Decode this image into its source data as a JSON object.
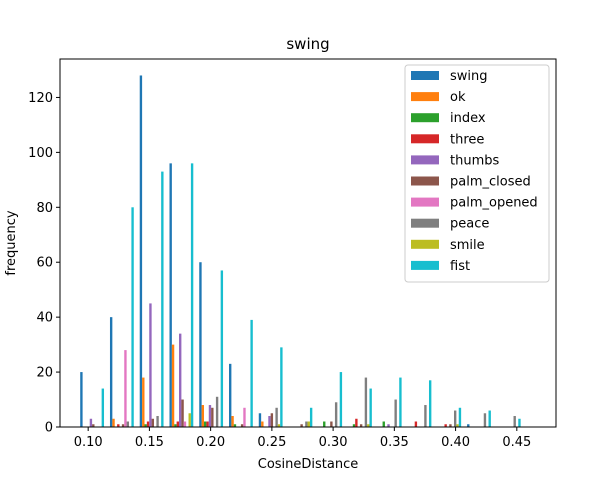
{
  "chart_data": {
    "type": "bar",
    "title": "swing",
    "xlabel": "CosineDistance",
    "ylabel": "frequency",
    "xlim": [
      0.077,
      0.482
    ],
    "ylim": [
      0,
      134
    ],
    "x_ticks": [
      "0.10",
      "0.15",
      "0.20",
      "0.25",
      "0.30",
      "0.35",
      "0.40",
      "0.45"
    ],
    "y_ticks": [
      "0",
      "20",
      "40",
      "60",
      "80",
      "100",
      "120"
    ],
    "legend_position": "top-right",
    "bin_start": 0.0935,
    "bin_width": 0.0243,
    "bins": 15,
    "series": [
      {
        "name": "swing",
        "color": "#1f77b4",
        "values": [
          20,
          40,
          128,
          96,
          60,
          23,
          5,
          0,
          0,
          0,
          0,
          0,
          0,
          1,
          0
        ]
      },
      {
        "name": "ok",
        "color": "#ff7f0e",
        "values": [
          0,
          3,
          18,
          30,
          8,
          4,
          2,
          0,
          0,
          0,
          0,
          0,
          0,
          0,
          0
        ]
      },
      {
        "name": "index",
        "color": "#2ca02c",
        "values": [
          0,
          0,
          1,
          1,
          2,
          1,
          0,
          0,
          2,
          1,
          2,
          0,
          0,
          0,
          0
        ]
      },
      {
        "name": "three",
        "color": "#d62728",
        "values": [
          0,
          1,
          2,
          2,
          2,
          0,
          0,
          0,
          0,
          3,
          0,
          2,
          1,
          0,
          0
        ]
      },
      {
        "name": "thumbs",
        "color": "#9467bd",
        "values": [
          3,
          0,
          45,
          34,
          8,
          0,
          4,
          0,
          0,
          0,
          1,
          0,
          0,
          0,
          0
        ]
      },
      {
        "name": "palm_closed",
        "color": "#8c564b",
        "values": [
          1,
          1,
          3,
          10,
          7,
          1,
          5,
          1,
          2,
          1,
          0,
          0,
          1,
          0,
          0
        ]
      },
      {
        "name": "palm_opened",
        "color": "#e377c2",
        "values": [
          0,
          28,
          0,
          2,
          0,
          7,
          0,
          0,
          0,
          0,
          0,
          0,
          0,
          0,
          0
        ]
      },
      {
        "name": "peace",
        "color": "#7f7f7f",
        "values": [
          0,
          2,
          4,
          0,
          11,
          0,
          7,
          2,
          9,
          18,
          10,
          8,
          6,
          5,
          4
        ]
      },
      {
        "name": "smile",
        "color": "#bcbd22",
        "values": [
          0,
          0,
          0,
          5,
          0,
          0,
          1,
          2,
          0,
          1,
          0,
          0,
          1,
          0,
          0
        ]
      },
      {
        "name": "fist",
        "color": "#17becf",
        "values": [
          14,
          80,
          93,
          96,
          57,
          39,
          29,
          7,
          20,
          14,
          18,
          17,
          7,
          6,
          3
        ]
      }
    ]
  }
}
